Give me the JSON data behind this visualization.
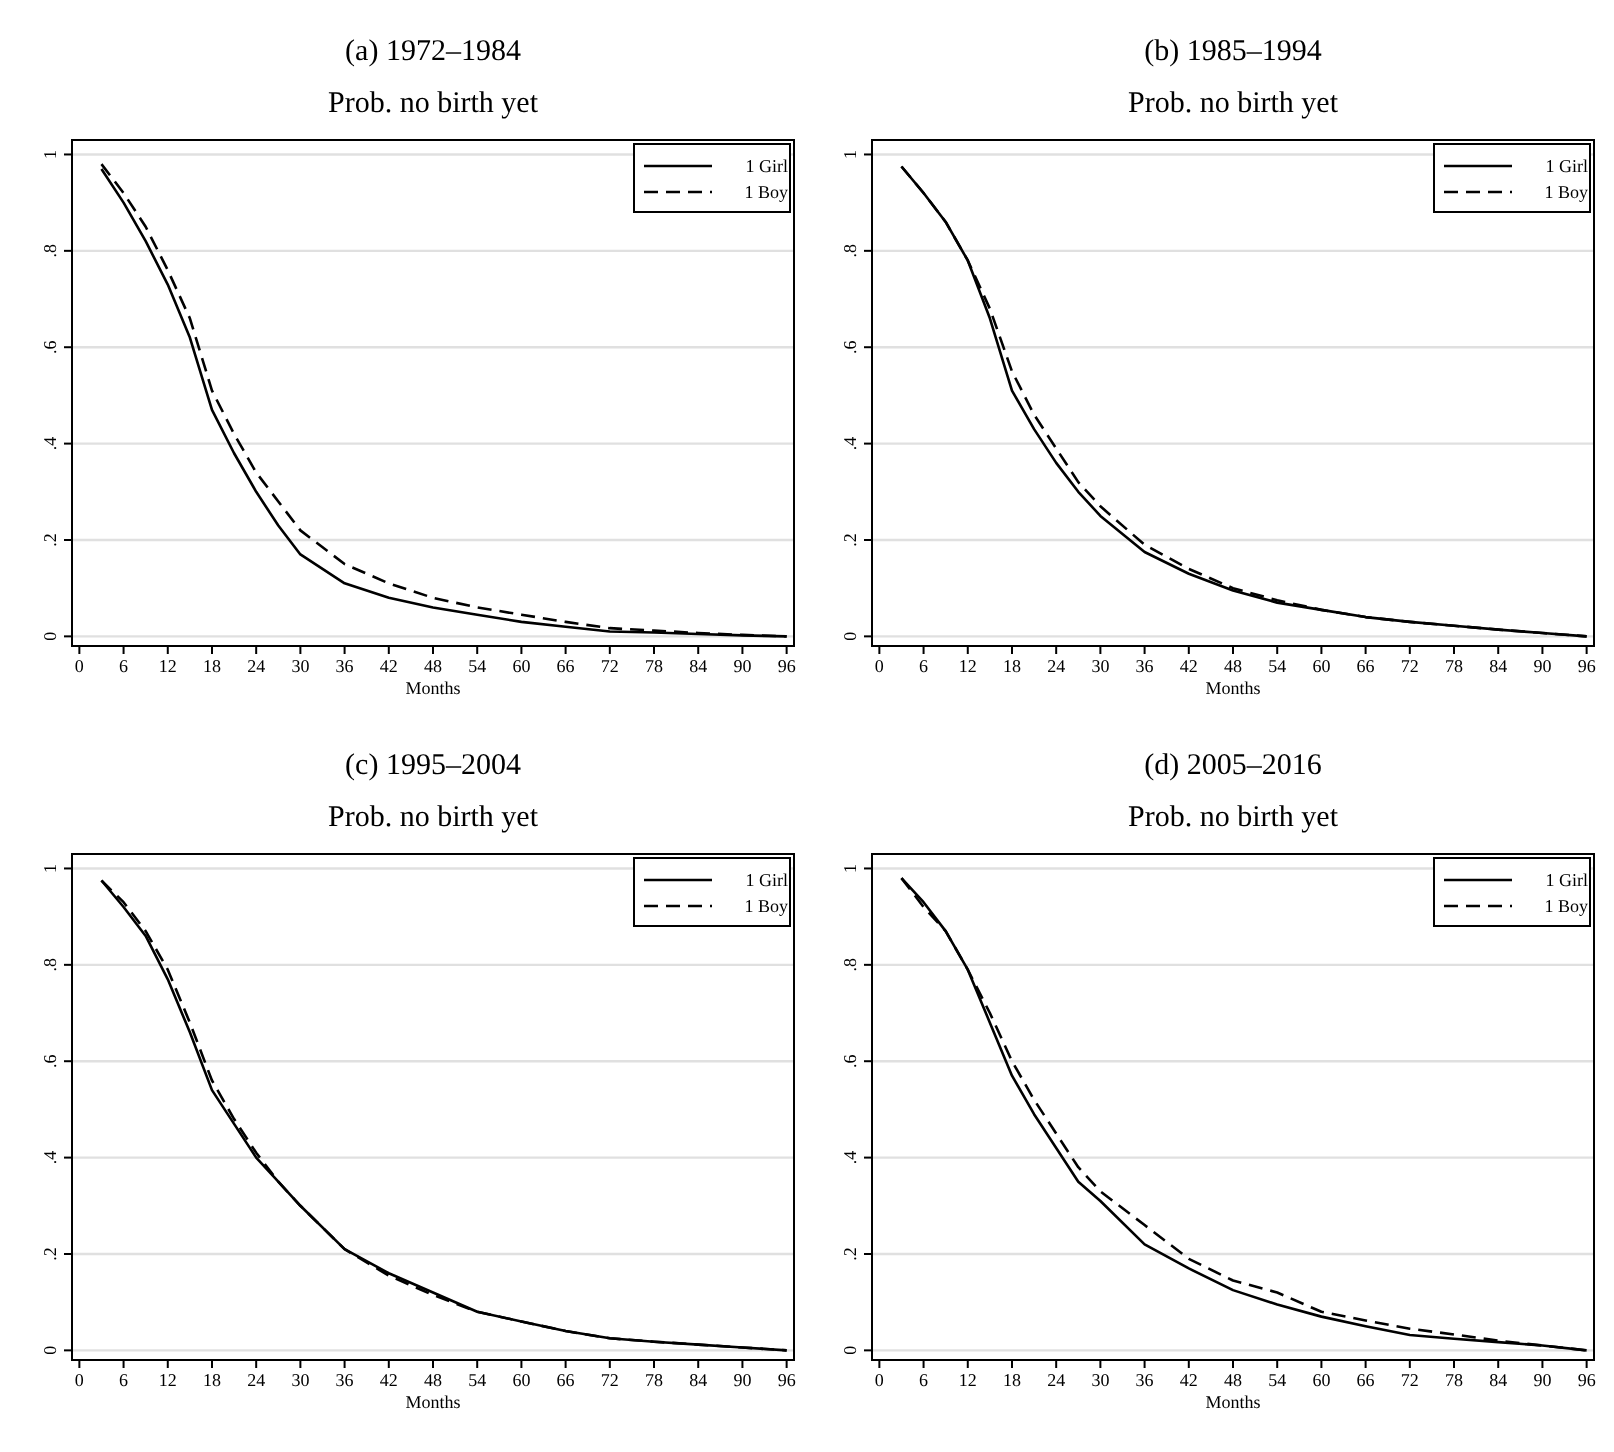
{
  "chart_data": [
    {
      "type": "line",
      "title": "(a) 1972–1984",
      "subtitle": "Prob. no birth yet",
      "xlabel": "Months",
      "x": [
        3,
        6,
        9,
        12,
        15,
        18,
        21,
        24,
        27,
        30,
        36,
        42,
        48,
        54,
        60,
        66,
        72,
        78,
        84,
        90,
        96
      ],
      "xlim": [
        -1,
        97
      ],
      "xticks": [
        0,
        6,
        12,
        18,
        24,
        30,
        36,
        42,
        48,
        54,
        60,
        66,
        72,
        78,
        84,
        90,
        96
      ],
      "ylim": [
        -0.02,
        1.03
      ],
      "yticks": [
        {
          "value": 0,
          "label": "0"
        },
        {
          "value": 0.2,
          "label": ".2"
        },
        {
          "value": 0.4,
          "label": ".4"
        },
        {
          "value": 0.6,
          "label": ".6"
        },
        {
          "value": 0.8,
          "label": ".8"
        },
        {
          "value": 1,
          "label": "1"
        }
      ],
      "grid": "y",
      "legend": "top right",
      "series": [
        {
          "name": "1 Girl",
          "color": "#000000",
          "line_style": "solid",
          "values": [
            0.97,
            0.9,
            0.82,
            0.73,
            0.62,
            0.47,
            0.38,
            0.3,
            0.23,
            0.17,
            0.11,
            0.08,
            0.06,
            0.045,
            0.03,
            0.02,
            0.01,
            0.008,
            0.005,
            0.002,
            0
          ]
        },
        {
          "name": "1 Boy",
          "color": "#000000",
          "line_style": "dashed",
          "values": [
            0.98,
            0.92,
            0.85,
            0.76,
            0.66,
            0.51,
            0.42,
            0.34,
            0.28,
            0.22,
            0.15,
            0.11,
            0.08,
            0.06,
            0.045,
            0.03,
            0.017,
            0.012,
            0.007,
            0.003,
            0
          ]
        }
      ]
    },
    {
      "type": "line",
      "title": "(b) 1985–1994",
      "subtitle": "Prob. no birth yet",
      "xlabel": "Months",
      "x": [
        3,
        6,
        9,
        12,
        15,
        18,
        21,
        24,
        27,
        30,
        36,
        42,
        48,
        54,
        60,
        66,
        72,
        78,
        84,
        90,
        96
      ],
      "xlim": [
        -1,
        97
      ],
      "xticks": [
        0,
        6,
        12,
        18,
        24,
        30,
        36,
        42,
        48,
        54,
        60,
        66,
        72,
        78,
        84,
        90,
        96
      ],
      "ylim": [
        -0.02,
        1.03
      ],
      "yticks": [
        {
          "value": 0,
          "label": "0"
        },
        {
          "value": 0.2,
          "label": ".2"
        },
        {
          "value": 0.4,
          "label": ".4"
        },
        {
          "value": 0.6,
          "label": ".6"
        },
        {
          "value": 0.8,
          "label": ".8"
        },
        {
          "value": 1,
          "label": "1"
        }
      ],
      "grid": "y",
      "legend": "top right",
      "series": [
        {
          "name": "1 Girl",
          "color": "#000000",
          "line_style": "solid",
          "values": [
            0.975,
            0.92,
            0.86,
            0.78,
            0.66,
            0.51,
            0.43,
            0.36,
            0.3,
            0.25,
            0.175,
            0.13,
            0.095,
            0.07,
            0.055,
            0.04,
            0.03,
            0.022,
            0.014,
            0.007,
            0
          ]
        },
        {
          "name": "1 Boy",
          "color": "#000000",
          "line_style": "dashed",
          "values": [
            0.975,
            0.92,
            0.86,
            0.78,
            0.68,
            0.55,
            0.46,
            0.39,
            0.32,
            0.27,
            0.19,
            0.14,
            0.1,
            0.075,
            0.055,
            0.04,
            0.03,
            0.022,
            0.014,
            0.007,
            0
          ]
        }
      ]
    },
    {
      "type": "line",
      "title": "(c) 1995–2004",
      "subtitle": "Prob. no birth yet",
      "xlabel": "Months",
      "x": [
        3,
        6,
        9,
        12,
        15,
        18,
        21,
        24,
        27,
        30,
        36,
        42,
        48,
        54,
        60,
        66,
        72,
        78,
        84,
        90,
        96
      ],
      "xlim": [
        -1,
        97
      ],
      "xticks": [
        0,
        6,
        12,
        18,
        24,
        30,
        36,
        42,
        48,
        54,
        60,
        66,
        72,
        78,
        84,
        90,
        96
      ],
      "ylim": [
        -0.02,
        1.03
      ],
      "yticks": [
        {
          "value": 0,
          "label": "0"
        },
        {
          "value": 0.2,
          "label": ".2"
        },
        {
          "value": 0.4,
          "label": ".4"
        },
        {
          "value": 0.6,
          "label": ".6"
        },
        {
          "value": 0.8,
          "label": ".8"
        },
        {
          "value": 1,
          "label": "1"
        }
      ],
      "grid": "y",
      "legend": "top right",
      "series": [
        {
          "name": "1 Girl",
          "color": "#000000",
          "line_style": "solid",
          "values": [
            0.975,
            0.92,
            0.86,
            0.77,
            0.66,
            0.54,
            0.47,
            0.4,
            0.35,
            0.3,
            0.21,
            0.16,
            0.12,
            0.08,
            0.06,
            0.04,
            0.025,
            0.018,
            0.012,
            0.006,
            0
          ]
        },
        {
          "name": "1 Boy",
          "color": "#000000",
          "line_style": "dashed",
          "values": [
            0.975,
            0.93,
            0.87,
            0.79,
            0.68,
            0.56,
            0.48,
            0.41,
            0.35,
            0.3,
            0.21,
            0.155,
            0.115,
            0.08,
            0.06,
            0.04,
            0.025,
            0.018,
            0.012,
            0.006,
            0
          ]
        }
      ]
    },
    {
      "type": "line",
      "title": "(d) 2005–2016",
      "subtitle": "Prob. no birth yet",
      "xlabel": "Months",
      "x": [
        3,
        6,
        9,
        12,
        15,
        18,
        21,
        24,
        27,
        30,
        36,
        42,
        48,
        54,
        60,
        66,
        72,
        78,
        84,
        90,
        96
      ],
      "xlim": [
        -1,
        97
      ],
      "xticks": [
        0,
        6,
        12,
        18,
        24,
        30,
        36,
        42,
        48,
        54,
        60,
        66,
        72,
        78,
        84,
        90,
        96
      ],
      "ylim": [
        -0.02,
        1.03
      ],
      "yticks": [
        {
          "value": 0,
          "label": "0"
        },
        {
          "value": 0.2,
          "label": ".2"
        },
        {
          "value": 0.4,
          "label": ".4"
        },
        {
          "value": 0.6,
          "label": ".6"
        },
        {
          "value": 0.8,
          "label": ".8"
        },
        {
          "value": 1,
          "label": "1"
        }
      ],
      "grid": "y",
      "legend": "top right",
      "series": [
        {
          "name": "1 Girl",
          "color": "#000000",
          "line_style": "solid",
          "values": [
            0.98,
            0.93,
            0.87,
            0.79,
            0.68,
            0.57,
            0.49,
            0.42,
            0.35,
            0.31,
            0.22,
            0.17,
            0.125,
            0.095,
            0.07,
            0.05,
            0.032,
            0.024,
            0.017,
            0.01,
            0
          ]
        },
        {
          "name": "1 Boy",
          "color": "#000000",
          "line_style": "dashed",
          "values": [
            0.98,
            0.92,
            0.87,
            0.79,
            0.7,
            0.6,
            0.52,
            0.45,
            0.38,
            0.33,
            0.26,
            0.19,
            0.145,
            0.12,
            0.08,
            0.062,
            0.045,
            0.033,
            0.02,
            0.01,
            0
          ]
        }
      ]
    }
  ]
}
